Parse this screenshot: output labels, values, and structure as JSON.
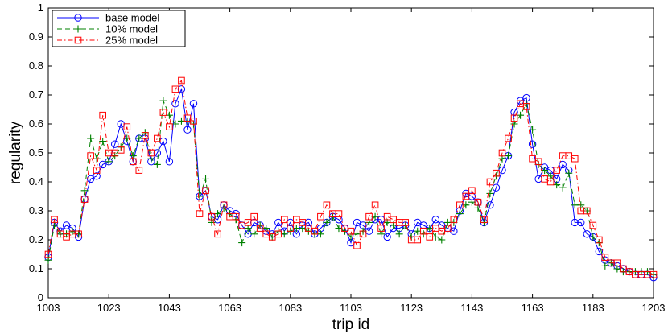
{
  "chart_data": {
    "type": "line",
    "title": "",
    "xlabel": "trip id",
    "ylabel": "regularity",
    "xlim": [
      1003,
      1203
    ],
    "ylim": [
      0,
      1
    ],
    "x_ticks": [
      1003,
      1023,
      1043,
      1063,
      1083,
      1103,
      1123,
      1143,
      1163,
      1183,
      1203
    ],
    "y_ticks": [
      0,
      0.1,
      0.2,
      0.3,
      0.4,
      0.5,
      0.6,
      0.7,
      0.8,
      0.9,
      1
    ],
    "x_tick_labels": [
      "1003",
      "1023",
      "1043",
      "1063",
      "1083",
      "1103",
      "1123",
      "1143",
      "1163",
      "1183",
      "1203"
    ],
    "y_tick_labels": [
      "0",
      "0.1",
      "0.2",
      "0.3",
      "0.4",
      "0.5",
      "0.6",
      "0.7",
      "0.8",
      "0.9",
      "1"
    ],
    "grid": false,
    "legend_position": "top-left",
    "x": [
      1003,
      1005,
      1007,
      1009,
      1011,
      1013,
      1015,
      1017,
      1019,
      1021,
      1023,
      1025,
      1027,
      1029,
      1031,
      1033,
      1035,
      1037,
      1039,
      1041,
      1043,
      1045,
      1047,
      1049,
      1051,
      1053,
      1055,
      1057,
      1059,
      1061,
      1063,
      1065,
      1067,
      1069,
      1071,
      1073,
      1075,
      1077,
      1079,
      1081,
      1083,
      1085,
      1087,
      1089,
      1091,
      1093,
      1095,
      1097,
      1099,
      1101,
      1103,
      1105,
      1107,
      1109,
      1111,
      1113,
      1115,
      1117,
      1119,
      1121,
      1123,
      1125,
      1127,
      1129,
      1131,
      1133,
      1135,
      1137,
      1139,
      1141,
      1143,
      1145,
      1147,
      1149,
      1151,
      1153,
      1155,
      1157,
      1159,
      1161,
      1163,
      1165,
      1167,
      1169,
      1171,
      1173,
      1175,
      1177,
      1179,
      1181,
      1183,
      1185,
      1187,
      1189,
      1191,
      1193,
      1195,
      1197,
      1199,
      1201,
      1203
    ],
    "series": [
      {
        "name": "base model",
        "color": "#0000ff",
        "dash": "solid",
        "marker": "circle",
        "values": [
          0.14,
          0.26,
          0.23,
          0.25,
          0.24,
          0.21,
          0.34,
          0.41,
          0.42,
          0.46,
          0.47,
          0.53,
          0.6,
          0.54,
          0.47,
          0.55,
          0.55,
          0.47,
          0.5,
          0.54,
          0.47,
          0.67,
          0.72,
          0.58,
          0.67,
          0.35,
          0.37,
          0.28,
          0.27,
          0.32,
          0.3,
          0.29,
          0.25,
          0.22,
          0.26,
          0.25,
          0.23,
          0.22,
          0.26,
          0.23,
          0.26,
          0.22,
          0.25,
          0.26,
          0.22,
          0.24,
          0.26,
          0.28,
          0.27,
          0.24,
          0.19,
          0.26,
          0.25,
          0.23,
          0.27,
          0.27,
          0.21,
          0.24,
          0.24,
          0.25,
          0.22,
          0.26,
          0.25,
          0.24,
          0.27,
          0.25,
          0.24,
          0.23,
          0.3,
          0.36,
          0.35,
          0.33,
          0.26,
          0.32,
          0.38,
          0.44,
          0.49,
          0.64,
          0.68,
          0.69,
          0.53,
          0.41,
          0.45,
          0.44,
          0.41,
          0.46,
          0.44,
          0.26,
          0.26,
          0.22,
          0.21,
          0.16,
          0.13,
          0.12,
          0.11,
          0.1,
          0.09,
          0.08,
          0.08,
          0.08,
          0.07
        ]
      },
      {
        "name": "10% model",
        "color": "#008000",
        "dash": "dashed",
        "marker": "plus",
        "values": [
          0.13,
          0.25,
          0.22,
          0.22,
          0.23,
          0.22,
          0.37,
          0.55,
          0.48,
          0.54,
          0.47,
          0.49,
          0.52,
          0.55,
          0.49,
          0.55,
          0.57,
          0.48,
          0.46,
          0.68,
          0.63,
          0.6,
          0.61,
          0.61,
          0.6,
          0.35,
          0.41,
          0.26,
          0.29,
          0.31,
          0.29,
          0.27,
          0.19,
          0.24,
          0.22,
          0.25,
          0.24,
          0.21,
          0.23,
          0.22,
          0.23,
          0.24,
          0.24,
          0.23,
          0.22,
          0.22,
          0.26,
          0.28,
          0.24,
          0.23,
          0.21,
          0.22,
          0.23,
          0.26,
          0.28,
          0.22,
          0.26,
          0.25,
          0.22,
          0.25,
          0.21,
          0.23,
          0.22,
          0.24,
          0.21,
          0.2,
          0.26,
          0.26,
          0.29,
          0.32,
          0.33,
          0.31,
          0.26,
          0.36,
          0.42,
          0.48,
          0.49,
          0.6,
          0.63,
          0.67,
          0.58,
          0.46,
          0.44,
          0.42,
          0.39,
          0.38,
          0.43,
          0.32,
          0.32,
          0.3,
          0.21,
          0.19,
          0.11,
          0.12,
          0.1,
          0.09,
          0.09,
          0.09,
          0.09,
          0.09,
          0.08
        ]
      },
      {
        "name": "25% model",
        "color": "#ff0000",
        "dash": "dashdot",
        "marker": "square",
        "values": [
          0.15,
          0.27,
          0.22,
          0.21,
          0.22,
          0.22,
          0.34,
          0.49,
          0.44,
          0.63,
          0.5,
          0.5,
          0.51,
          0.59,
          0.47,
          0.44,
          0.56,
          0.5,
          0.55,
          0.64,
          0.59,
          0.72,
          0.75,
          0.62,
          0.61,
          0.29,
          0.37,
          0.28,
          0.22,
          0.32,
          0.28,
          0.28,
          0.25,
          0.26,
          0.28,
          0.24,
          0.22,
          0.21,
          0.22,
          0.27,
          0.24,
          0.27,
          0.26,
          0.24,
          0.23,
          0.28,
          0.32,
          0.29,
          0.29,
          0.24,
          0.23,
          0.18,
          0.22,
          0.28,
          0.32,
          0.24,
          0.28,
          0.27,
          0.26,
          0.26,
          0.2,
          0.2,
          0.23,
          0.21,
          0.24,
          0.23,
          0.24,
          0.27,
          0.32,
          0.35,
          0.37,
          0.33,
          0.27,
          0.4,
          0.43,
          0.5,
          0.55,
          0.62,
          0.67,
          0.66,
          0.48,
          0.47,
          0.41,
          0.4,
          0.44,
          0.49,
          0.49,
          0.48,
          0.3,
          0.3,
          0.25,
          0.2,
          0.14,
          0.12,
          0.12,
          0.1,
          0.09,
          0.08,
          0.08,
          0.08,
          0.08
        ]
      }
    ]
  }
}
